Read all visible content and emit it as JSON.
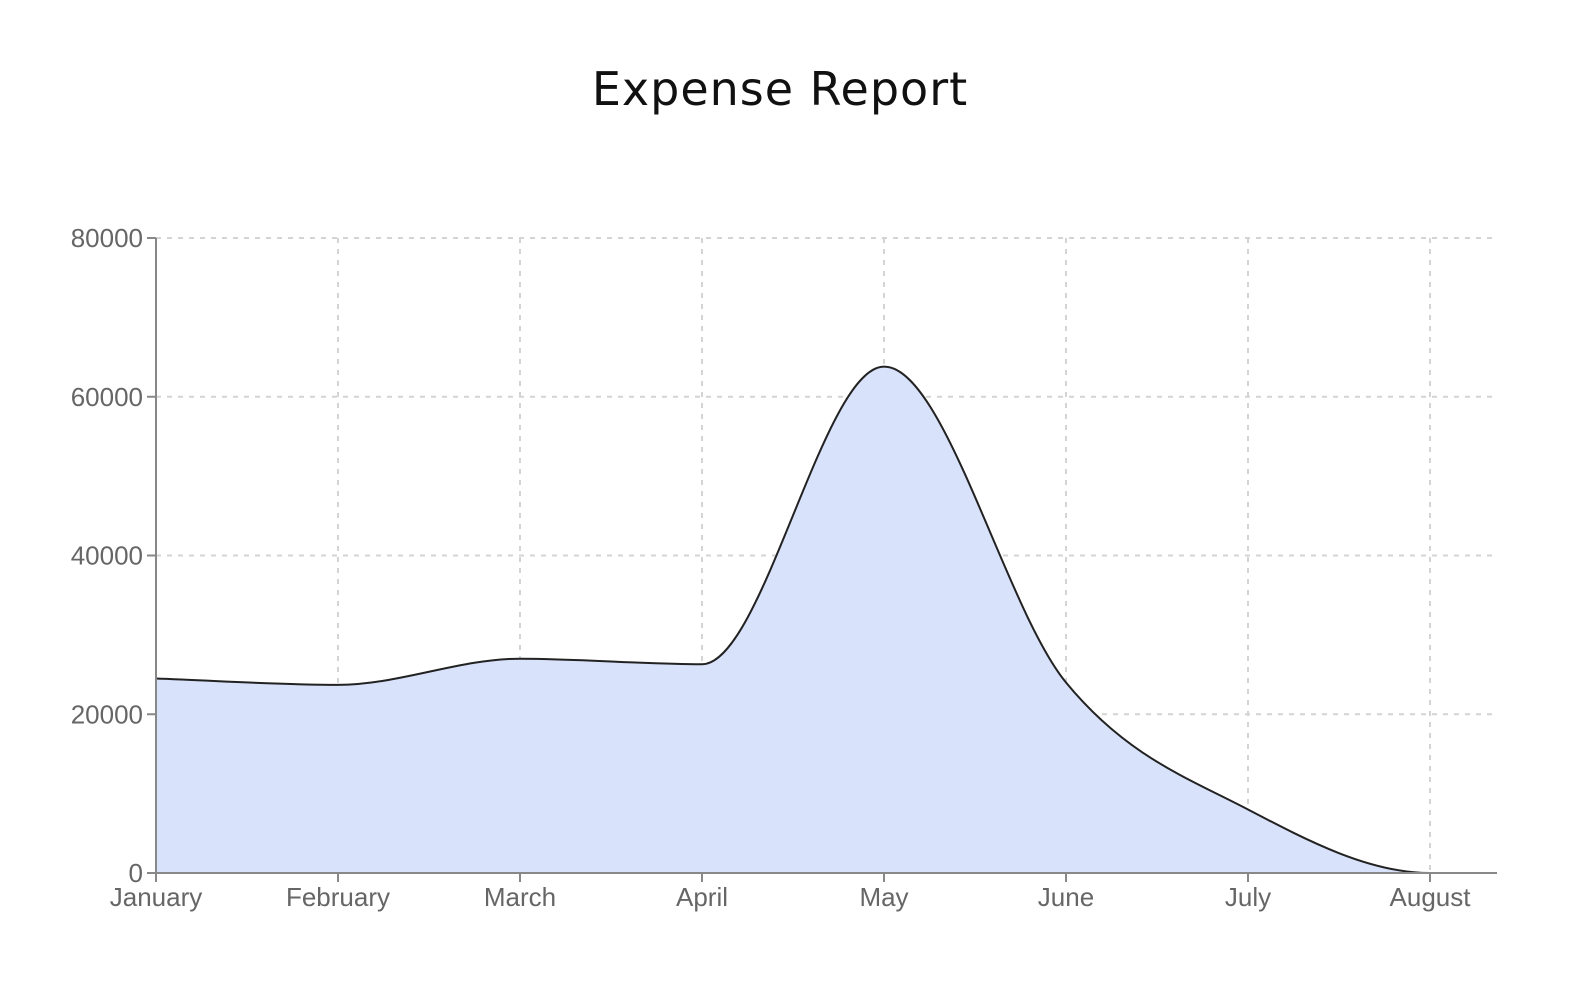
{
  "chart_data": {
    "type": "area",
    "title": "Expense Report",
    "xlabel": "",
    "ylabel": "",
    "categories": [
      "January",
      "February",
      "March",
      "April",
      "May",
      "June",
      "July",
      "August"
    ],
    "series": [
      {
        "values": [
          24500,
          23700,
          27000,
          26300,
          63800,
          24000,
          8000,
          0
        ]
      }
    ],
    "ylim": [
      0,
      80000
    ],
    "yticks": [
      0,
      20000,
      40000,
      60000,
      80000
    ],
    "ytick_labels": [
      "0",
      "20000",
      "40000",
      "60000",
      "80000"
    ],
    "grid": true,
    "legend": "none",
    "colors": {
      "fill": "#d9e2fb",
      "line": "#222222",
      "grid": "#d4d4d4",
      "axis": "#888888",
      "tick_text": "#666666"
    }
  }
}
